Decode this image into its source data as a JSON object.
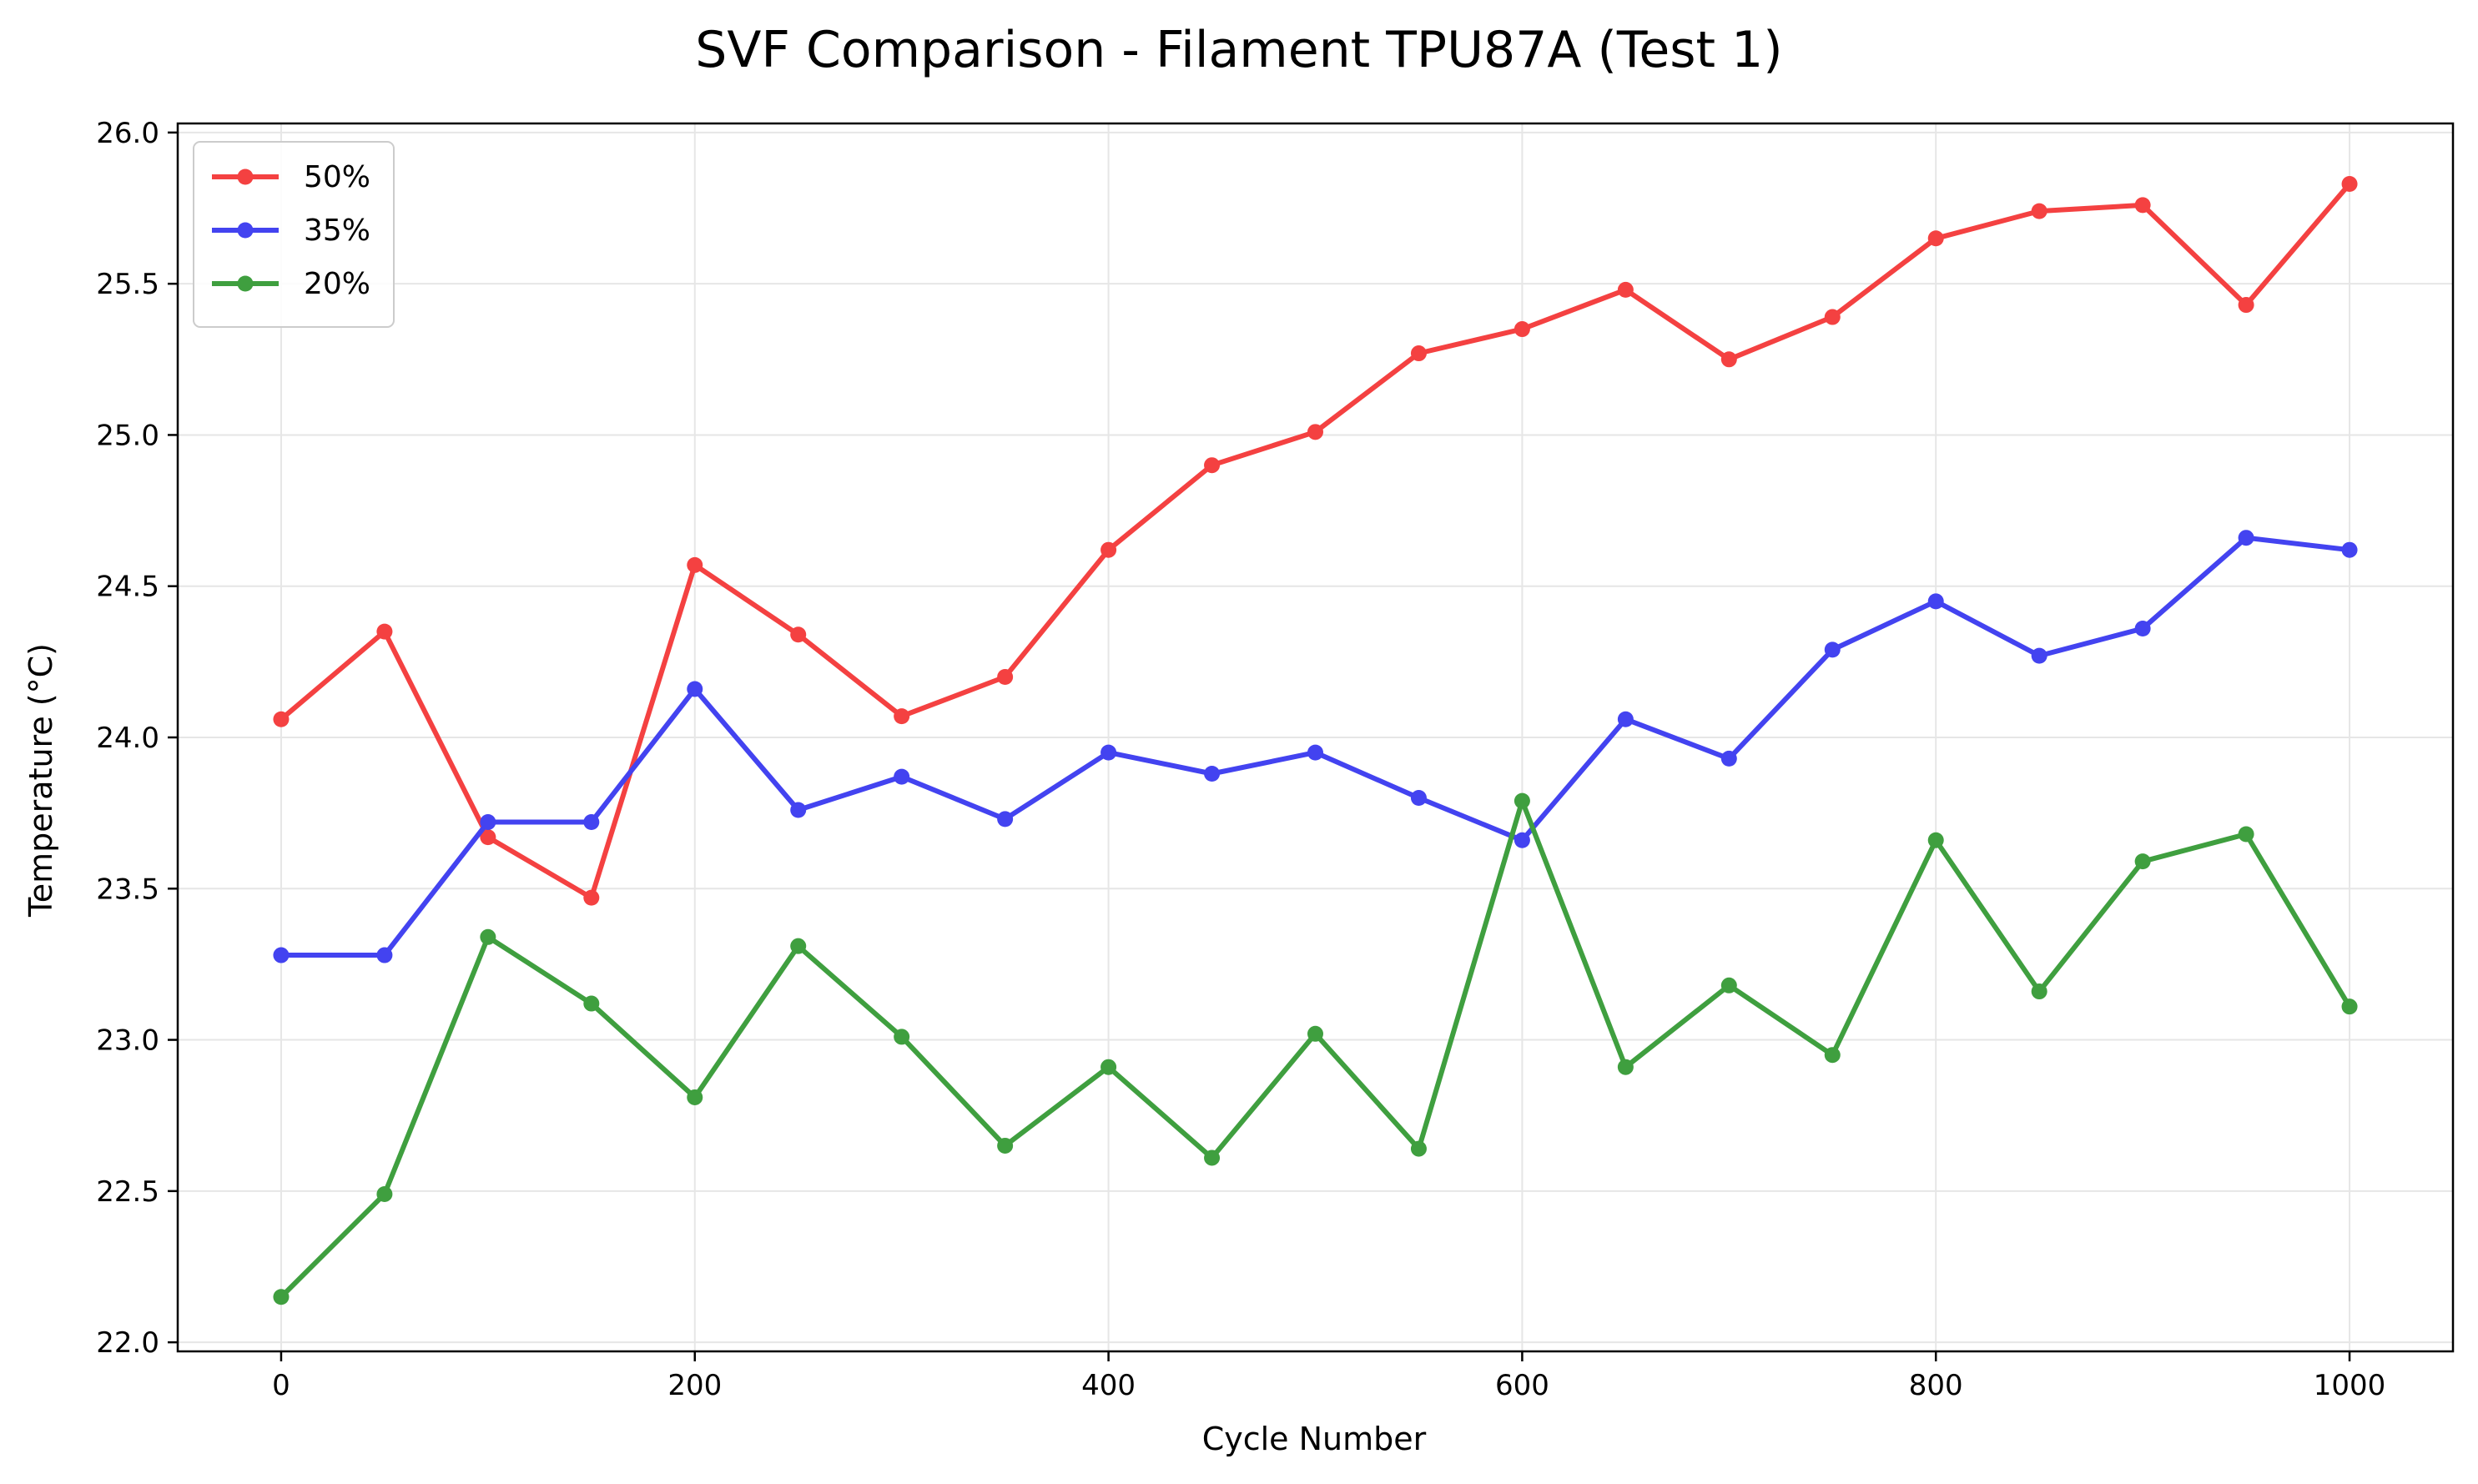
{
  "chart_data": {
    "type": "line",
    "title": "SVF Comparison - Filament TPU87A (Test 1)",
    "xlabel": "Cycle Number",
    "ylabel": "Temperature (°C)",
    "xlim": [
      -50,
      1050
    ],
    "ylim": [
      21.97,
      26.03
    ],
    "x_ticks": [
      0,
      200,
      400,
      600,
      800,
      1000
    ],
    "y_ticks": [
      22.0,
      22.5,
      23.0,
      23.5,
      24.0,
      24.5,
      25.0,
      25.5,
      26.0
    ],
    "grid": true,
    "legend_position": "top-left",
    "x": [
      0,
      50,
      100,
      150,
      200,
      250,
      300,
      350,
      400,
      450,
      500,
      550,
      600,
      650,
      700,
      750,
      800,
      850,
      900,
      950,
      1000
    ],
    "series": [
      {
        "name": "50%",
        "color": "#f44141",
        "values": [
          24.06,
          24.35,
          23.67,
          23.47,
          24.57,
          24.34,
          24.07,
          24.2,
          24.62,
          24.9,
          25.01,
          25.27,
          25.35,
          25.48,
          25.25,
          25.39,
          25.65,
          25.74,
          25.76,
          25.43,
          25.83
        ]
      },
      {
        "name": "35%",
        "color": "#4343f0",
        "values": [
          23.28,
          23.28,
          23.72,
          23.72,
          24.16,
          23.76,
          23.87,
          23.73,
          23.95,
          23.88,
          23.95,
          23.8,
          23.66,
          24.06,
          23.93,
          24.29,
          24.45,
          24.27,
          24.36,
          24.66,
          24.62
        ]
      },
      {
        "name": "20%",
        "color": "#3f9f3f",
        "values": [
          22.15,
          22.49,
          23.34,
          23.12,
          22.81,
          23.31,
          23.01,
          22.65,
          22.91,
          22.61,
          23.02,
          22.64,
          23.79,
          22.91,
          23.18,
          22.95,
          23.66,
          23.16,
          23.59,
          23.68,
          23.11
        ]
      }
    ]
  }
}
